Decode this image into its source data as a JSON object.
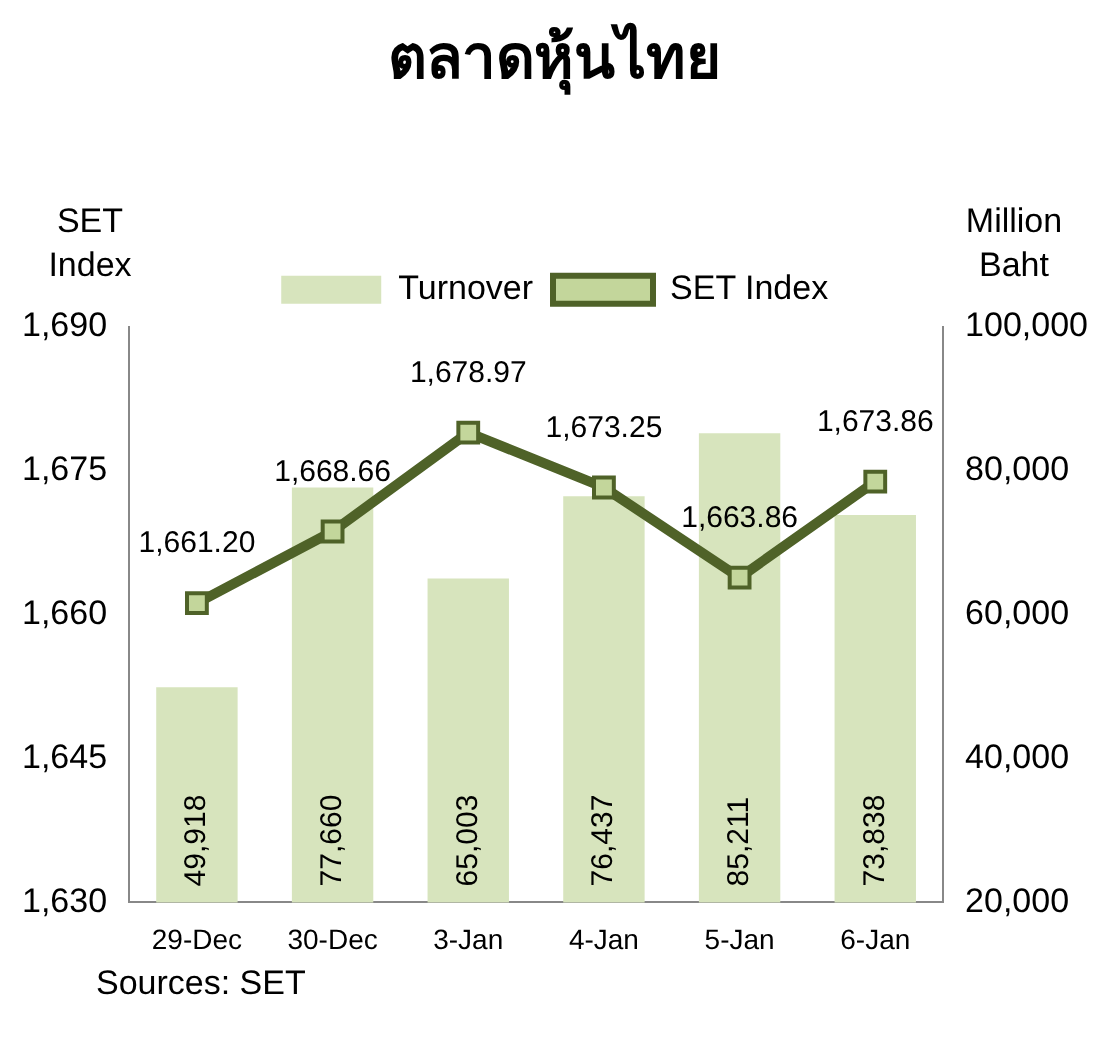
{
  "chart_data": {
    "type": "bar",
    "title": "ตลาดหุ้นไทย",
    "ylabel": "SET Index",
    "y2label": "Million Baht",
    "categories": [
      "29-Dec",
      "30-Dec",
      "3-Jan",
      "4-Jan",
      "5-Jan",
      "6-Jan"
    ],
    "series": [
      {
        "name": "Turnover",
        "axis": "y2",
        "color": "#d7e4bd",
        "values": [
          49918,
          77660,
          65003,
          76437,
          85211,
          73838
        ],
        "value_labels": [
          "49,918",
          "77,660",
          "65,003",
          "76,437",
          "85,211",
          "73,838"
        ]
      },
      {
        "name": "SET Index",
        "type": "line",
        "axis": "y",
        "color": "#4f6228",
        "marker": "square",
        "values": [
          1661.2,
          1668.66,
          1678.97,
          1673.25,
          1663.86,
          1673.86
        ],
        "value_labels": [
          "1,661.20",
          "1,668.66",
          "1,678.97",
          "1,673.25",
          "1,663.86",
          "1,673.86"
        ]
      }
    ],
    "ylim": [
      1630,
      1690
    ],
    "yticks": [
      {
        "value": 1630,
        "label": "1,630"
      },
      {
        "value": 1645,
        "label": "1,645"
      },
      {
        "value": 1660,
        "label": "1,660"
      },
      {
        "value": 1675,
        "label": "1,675"
      },
      {
        "value": 1690,
        "label": "1,690"
      }
    ],
    "y2lim": [
      20000,
      100000
    ],
    "y2ticks": [
      {
        "value": 20000,
        "label": "20,000"
      },
      {
        "value": 40000,
        "label": "40,000"
      },
      {
        "value": 60000,
        "label": "60,000"
      },
      {
        "value": 80000,
        "label": "80,000"
      },
      {
        "value": 100000,
        "label": "100,000"
      }
    ],
    "grid": false,
    "legend": "top",
    "annotations": [
      "Sources: SET"
    ]
  }
}
